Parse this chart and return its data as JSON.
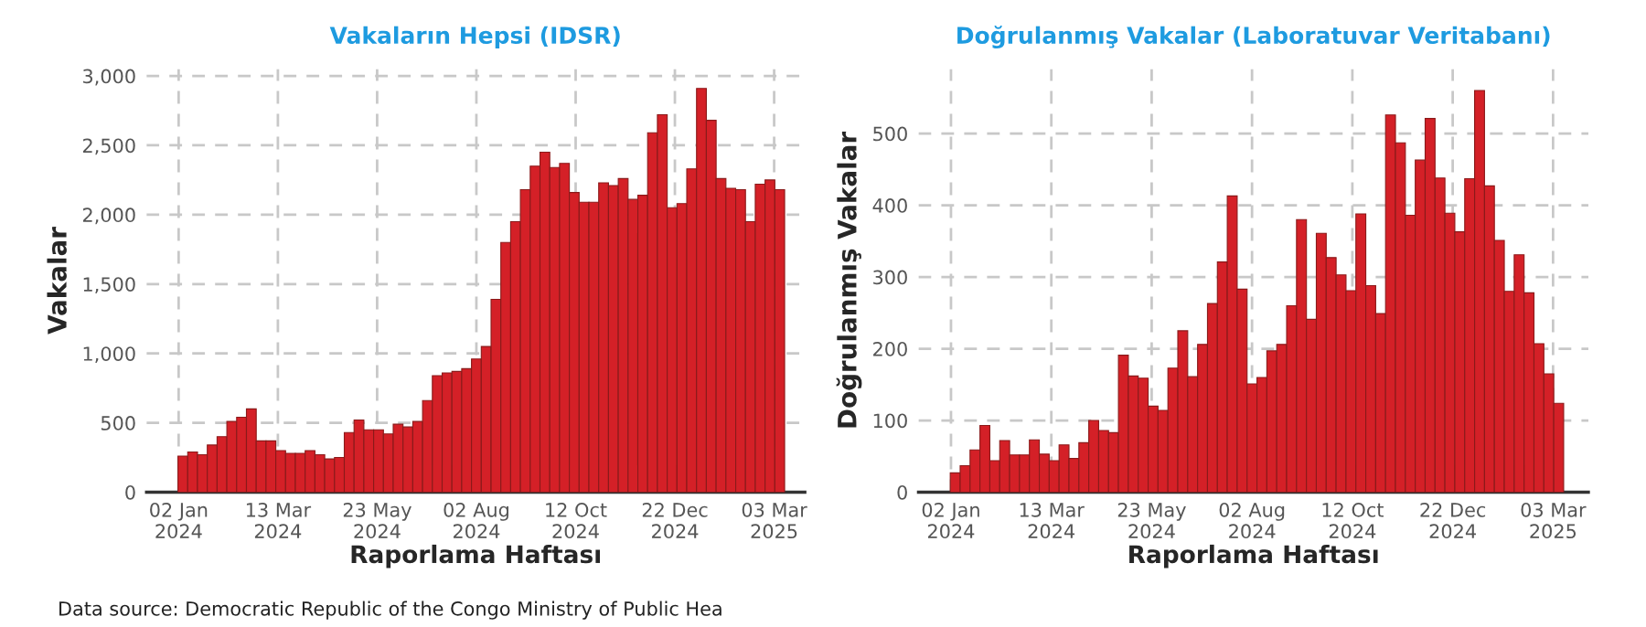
{
  "chart_data": [
    {
      "type": "bar",
      "title": "Vakaların Hepsi (IDSR)",
      "xlabel": "Raporlama Haftası",
      "ylabel": "Vakalar",
      "annotations": [
        "Data source: Democratic Republic of the Congo Ministry of Public Hea"
      ],
      "x": [
        "2024-01-05",
        "2024-01-12",
        "2024-01-19",
        "2024-01-26",
        "2024-02-02",
        "2024-02-09",
        "2024-02-16",
        "2024-02-23",
        "2024-03-01",
        "2024-03-08",
        "2024-03-15",
        "2024-03-22",
        "2024-03-29",
        "2024-04-05",
        "2024-04-12",
        "2024-04-19",
        "2024-04-26",
        "2024-05-03",
        "2024-05-10",
        "2024-05-17",
        "2024-05-24",
        "2024-05-31",
        "2024-06-07",
        "2024-06-14",
        "2024-06-21",
        "2024-06-28",
        "2024-07-05",
        "2024-07-12",
        "2024-07-19",
        "2024-07-26",
        "2024-08-02",
        "2024-08-09",
        "2024-08-16",
        "2024-08-23",
        "2024-08-30",
        "2024-09-06",
        "2024-09-13",
        "2024-09-20",
        "2024-09-27",
        "2024-10-04",
        "2024-10-11",
        "2024-10-18",
        "2024-10-25",
        "2024-11-01",
        "2024-11-08",
        "2024-11-15",
        "2024-11-22",
        "2024-11-29",
        "2024-12-06",
        "2024-12-13",
        "2024-12-20",
        "2024-12-27",
        "2025-01-03",
        "2025-01-10",
        "2025-01-17",
        "2025-01-24",
        "2025-01-31",
        "2025-02-07",
        "2025-02-14",
        "2025-02-21",
        "2025-02-28",
        "2025-03-07"
      ],
      "values": [
        260,
        290,
        270,
        340,
        400,
        510,
        540,
        600,
        370,
        370,
        300,
        280,
        280,
        300,
        270,
        240,
        250,
        430,
        520,
        450,
        450,
        420,
        490,
        470,
        510,
        660,
        840,
        860,
        870,
        890,
        960,
        1050,
        1390,
        1800,
        1950,
        2180,
        2350,
        2450,
        2340,
        2370,
        2160,
        2090,
        2090,
        2230,
        2210,
        2260,
        2110,
        2140,
        2590,
        2720,
        2050,
        2080,
        2330,
        2910,
        2680,
        2260,
        2190,
        2180,
        1950,
        2220,
        2250,
        2180
      ],
      "color": "#d42027",
      "xlim": [
        "2023-12-10",
        "2025-03-25"
      ],
      "xticks": [
        {
          "value": "2024-01-02",
          "label": "02 Jan\n2024"
        },
        {
          "value": "2024-03-13",
          "label": "13 Mar\n2024"
        },
        {
          "value": "2024-05-23",
          "label": "23 May\n2024"
        },
        {
          "value": "2024-08-02",
          "label": "02 Aug\n2024"
        },
        {
          "value": "2024-10-12",
          "label": "12 Oct\n2024"
        },
        {
          "value": "2024-12-22",
          "label": "22 Dec\n2024"
        },
        {
          "value": "2025-03-03",
          "label": "03 Mar\n2025"
        }
      ],
      "ylim": [
        0,
        3050
      ],
      "yticks": [
        0,
        500,
        {
          "value": 1000,
          "label": "1,000"
        },
        {
          "value": 1500,
          "label": "1,500"
        },
        {
          "value": 2000,
          "label": "2,000"
        },
        {
          "value": 2500,
          "label": "2,500"
        },
        {
          "value": 3000,
          "label": "3,000"
        }
      ],
      "grid": true
    },
    {
      "type": "bar",
      "title": "Doğrulanmış Vakalar (Laboratuvar Veritabanı)",
      "xlabel": "Raporlama Haftası",
      "ylabel": "Doğrulanmış Vakalar",
      "x": [
        "2024-01-05",
        "2024-01-12",
        "2024-01-19",
        "2024-01-26",
        "2024-02-02",
        "2024-02-09",
        "2024-02-16",
        "2024-02-23",
        "2024-03-01",
        "2024-03-08",
        "2024-03-15",
        "2024-03-22",
        "2024-03-29",
        "2024-04-05",
        "2024-04-12",
        "2024-04-19",
        "2024-04-26",
        "2024-05-03",
        "2024-05-10",
        "2024-05-17",
        "2024-05-24",
        "2024-05-31",
        "2024-06-07",
        "2024-06-14",
        "2024-06-21",
        "2024-06-28",
        "2024-07-05",
        "2024-07-12",
        "2024-07-19",
        "2024-07-26",
        "2024-08-02",
        "2024-08-09",
        "2024-08-16",
        "2024-08-23",
        "2024-08-30",
        "2024-09-06",
        "2024-09-13",
        "2024-09-20",
        "2024-09-27",
        "2024-10-04",
        "2024-10-11",
        "2024-10-18",
        "2024-10-25",
        "2024-11-01",
        "2024-11-08",
        "2024-11-15",
        "2024-11-22",
        "2024-11-29",
        "2024-12-06",
        "2024-12-13",
        "2024-12-20",
        "2024-12-27",
        "2025-01-03",
        "2025-01-10",
        "2025-01-17",
        "2025-01-24",
        "2025-01-31",
        "2025-02-07",
        "2025-02-14",
        "2025-02-21",
        "2025-02-28",
        "2025-03-07"
      ],
      "values": [
        27,
        37,
        59,
        93,
        44,
        72,
        52,
        52,
        73,
        53,
        44,
        66,
        47,
        69,
        100,
        86,
        83,
        191,
        162,
        159,
        120,
        114,
        173,
        225,
        161,
        206,
        263,
        321,
        413,
        283,
        151,
        160,
        197,
        206,
        260,
        380,
        241,
        361,
        327,
        303,
        281,
        388,
        288,
        249,
        526,
        487,
        386,
        463,
        521,
        438,
        389,
        363,
        437,
        560,
        427,
        351,
        280,
        331,
        278,
        207,
        165,
        124
      ],
      "color": "#d42027",
      "xlim": [
        "2023-12-10",
        "2025-03-28"
      ],
      "xticks": [
        {
          "value": "2024-01-02",
          "label": "02 Jan\n2024"
        },
        {
          "value": "2024-03-13",
          "label": "13 Mar\n2024"
        },
        {
          "value": "2024-05-23",
          "label": "23 May\n2024"
        },
        {
          "value": "2024-08-02",
          "label": "02 Aug\n2024"
        },
        {
          "value": "2024-10-12",
          "label": "12 Oct\n2024"
        },
        {
          "value": "2024-12-22",
          "label": "22 Dec\n2024"
        },
        {
          "value": "2025-03-03",
          "label": "03 Mar\n2025"
        }
      ],
      "ylim": [
        0,
        590
      ],
      "yticks": [
        0,
        100,
        200,
        300,
        400,
        500
      ],
      "grid": true
    }
  ]
}
